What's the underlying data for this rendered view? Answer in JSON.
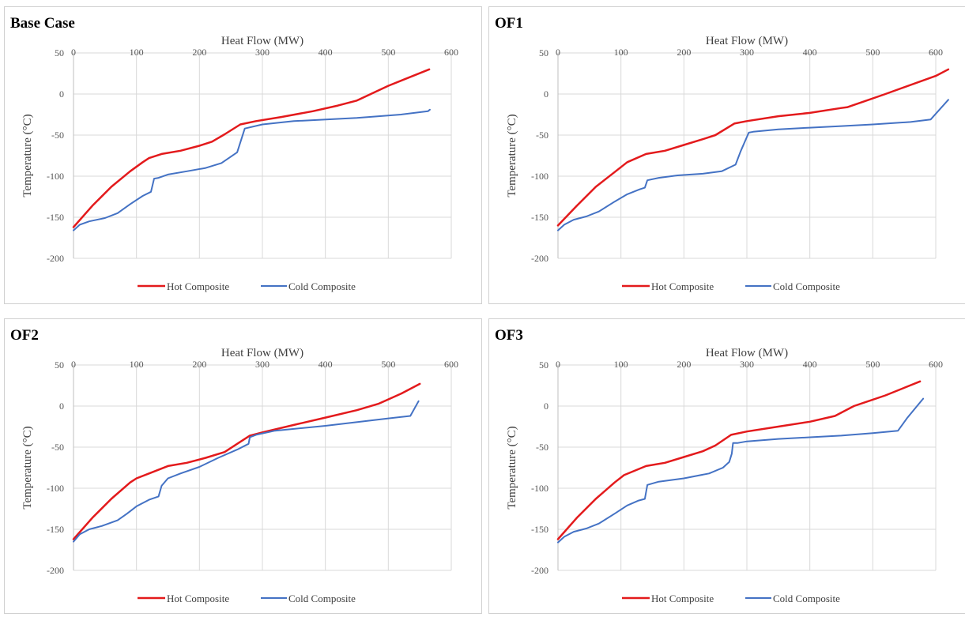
{
  "legend": {
    "hot": "Hot Composite",
    "cold": "Cold Composite"
  },
  "colors": {
    "hot": "#e31a1c",
    "cold": "#4472c4",
    "grid": "#d9d9d9",
    "axis": "#bfbfbf"
  },
  "chart_data": [
    {
      "type": "line",
      "title": "Base Case",
      "xlabel": "Heat Flow (MW)",
      "ylabel": "Temperature (°C)",
      "xlim": [
        0,
        600
      ],
      "ylim": [
        -200,
        50
      ],
      "xticks": [
        0,
        100,
        200,
        300,
        400,
        500,
        600
      ],
      "yticks": [
        50,
        0,
        -50,
        -100,
        -150,
        -200
      ],
      "grid": true,
      "legend_position": "bottom",
      "series": [
        {
          "name": "Hot Composite",
          "x": [
            0,
            30,
            60,
            90,
            110,
            120,
            140,
            170,
            200,
            220,
            240,
            265,
            290,
            330,
            380,
            420,
            450,
            500,
            565
          ],
          "y": [
            -162,
            -136,
            -113,
            -94,
            -83,
            -78,
            -73,
            -69,
            -63,
            -58,
            -49,
            -37,
            -33,
            -28,
            -21,
            -14,
            -8,
            10,
            30
          ]
        },
        {
          "name": "Cold Composite",
          "x": [
            0,
            10,
            25,
            50,
            70,
            90,
            110,
            123,
            128,
            135,
            150,
            180,
            210,
            235,
            260,
            272,
            300,
            350,
            450,
            520,
            563,
            566
          ],
          "y": [
            -166,
            -159,
            -155,
            -151,
            -145,
            -134,
            -124,
            -119,
            -103,
            -102,
            -98,
            -94,
            -90,
            -84,
            -71,
            -42,
            -37,
            -33,
            -29,
            -25,
            -21,
            -19
          ]
        }
      ]
    },
    {
      "type": "line",
      "title": "OF1",
      "xlabel": "Heat Flow (MW)",
      "ylabel": "Temperature (°C)",
      "xlim": [
        0,
        600
      ],
      "ylim": [
        -200,
        50
      ],
      "xticks": [
        0,
        100,
        200,
        300,
        400,
        500,
        600
      ],
      "yticks": [
        50,
        0,
        -50,
        -100,
        -150,
        -200
      ],
      "grid": true,
      "legend_position": "bottom",
      "series": [
        {
          "name": "Hot Composite",
          "x": [
            0,
            30,
            60,
            90,
            110,
            140,
            170,
            200,
            230,
            250,
            280,
            300,
            350,
            400,
            450,
            460,
            520,
            600,
            620
          ],
          "y": [
            -160,
            -136,
            -113,
            -95,
            -83,
            -73,
            -69,
            -62,
            -55,
            -50,
            -36,
            -33,
            -27,
            -23,
            -17,
            -16,
            0,
            22,
            30
          ]
        },
        {
          "name": "Cold Composite",
          "x": [
            0,
            10,
            25,
            45,
            65,
            90,
            110,
            130,
            138,
            142,
            160,
            190,
            230,
            260,
            282,
            290,
            303,
            310,
            350,
            400,
            450,
            500,
            560,
            592,
            620
          ],
          "y": [
            -166,
            -159,
            -153,
            -149,
            -143,
            -131,
            -122,
            -116,
            -114,
            -105,
            -102,
            -99,
            -97,
            -94,
            -86,
            -70,
            -47,
            -46,
            -43,
            -41,
            -39,
            -37,
            -34,
            -31,
            -7
          ]
        }
      ]
    },
    {
      "type": "line",
      "title": "OF2",
      "xlabel": "Heat Flow (MW)",
      "ylabel": "Temperature (°C)",
      "xlim": [
        0,
        600
      ],
      "ylim": [
        -200,
        50
      ],
      "xticks": [
        0,
        100,
        200,
        300,
        400,
        500,
        600
      ],
      "yticks": [
        50,
        0,
        -50,
        -100,
        -150,
        -200
      ],
      "grid": true,
      "legend_position": "bottom",
      "series": [
        {
          "name": "Hot Composite",
          "x": [
            0,
            30,
            60,
            90,
            100,
            120,
            150,
            180,
            210,
            240,
            260,
            280,
            300,
            350,
            400,
            450,
            485,
            520,
            550
          ],
          "y": [
            -162,
            -136,
            -113,
            -93,
            -88,
            -82,
            -73,
            -69,
            -63,
            -56,
            -46,
            -36,
            -32,
            -23,
            -14,
            -5,
            3,
            15,
            27
          ]
        },
        {
          "name": "Cold Composite",
          "x": [
            0,
            10,
            25,
            45,
            70,
            85,
            100,
            120,
            135,
            140,
            150,
            170,
            200,
            230,
            260,
            278,
            280,
            290,
            320,
            400,
            500,
            535,
            548
          ],
          "y": [
            -165,
            -156,
            -150,
            -146,
            -139,
            -131,
            -122,
            -114,
            -110,
            -97,
            -88,
            -82,
            -74,
            -63,
            -53,
            -46,
            -38,
            -35,
            -30,
            -24,
            -15,
            -12,
            6
          ]
        }
      ]
    },
    {
      "type": "line",
      "title": "OF3",
      "xlabel": "Heat Flow (MW)",
      "ylabel": "Temperature (°C)",
      "xlim": [
        0,
        600
      ],
      "ylim": [
        -200,
        50
      ],
      "xticks": [
        0,
        100,
        200,
        300,
        400,
        500,
        600
      ],
      "yticks": [
        50,
        0,
        -50,
        -100,
        -150,
        -200
      ],
      "grid": true,
      "legend_position": "bottom",
      "series": [
        {
          "name": "Hot Composite",
          "x": [
            0,
            30,
            60,
            90,
            105,
            140,
            170,
            200,
            230,
            250,
            275,
            300,
            350,
            400,
            440,
            470,
            520,
            575
          ],
          "y": [
            -162,
            -136,
            -113,
            -93,
            -84,
            -73,
            -69,
            -62,
            -55,
            -48,
            -35,
            -31,
            -25,
            -19,
            -12,
            0,
            13,
            30
          ]
        },
        {
          "name": "Cold Composite",
          "x": [
            0,
            10,
            25,
            45,
            65,
            90,
            110,
            128,
            138,
            142,
            160,
            200,
            240,
            262,
            272,
            276,
            278,
            285,
            300,
            350,
            400,
            450,
            500,
            540,
            555,
            580
          ],
          "y": [
            -166,
            -159,
            -153,
            -149,
            -143,
            -131,
            -121,
            -115,
            -113,
            -96,
            -92,
            -88,
            -82,
            -75,
            -68,
            -58,
            -45,
            -45,
            -43,
            -40,
            -38,
            -36,
            -33,
            -30,
            -14,
            9
          ]
        }
      ]
    }
  ]
}
